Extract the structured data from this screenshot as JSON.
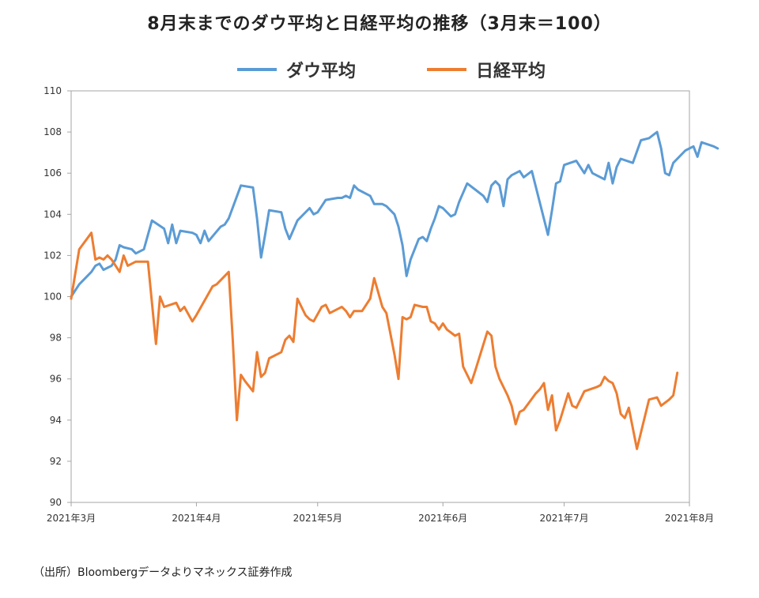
{
  "chart_data": {
    "type": "line",
    "title": "8月末までのダウ平均と日経平均の推移（3月末＝100）",
    "source": "（出所）Bloombergデータよりマネックス証券作成",
    "ylim": [
      90,
      110
    ],
    "yticks": [
      "90",
      "92",
      "94",
      "96",
      "98",
      "100",
      "102",
      "104",
      "106",
      "108",
      "110"
    ],
    "xticks": [
      "2021年3月",
      "2021年4月",
      "2021年5月",
      "2021年6月",
      "2021年7月",
      "2021年8月"
    ],
    "xlim": [
      0,
      153
    ],
    "xtick_positions": [
      0,
      31,
      61,
      92,
      122,
      153
    ],
    "legend_position": "top",
    "series": [
      {
        "name": "ダウ平均",
        "color": "#5B9BD5",
        "points": [
          [
            0,
            100
          ],
          [
            2,
            100.6
          ],
          [
            5,
            101.2
          ],
          [
            6,
            101.5
          ],
          [
            7,
            101.6
          ],
          [
            8,
            101.3
          ],
          [
            9,
            101.4
          ],
          [
            10,
            101.5
          ],
          [
            11,
            101.8
          ],
          [
            12,
            102.5
          ],
          [
            13,
            102.4
          ],
          [
            15,
            102.3
          ],
          [
            16,
            102.1
          ],
          [
            18,
            102.3
          ],
          [
            19,
            103.0
          ],
          [
            20,
            103.7
          ],
          [
            23,
            103.3
          ],
          [
            24,
            102.6
          ],
          [
            25,
            103.5
          ],
          [
            26,
            102.6
          ],
          [
            27,
            103.2
          ],
          [
            30,
            103.1
          ],
          [
            31,
            103.0
          ],
          [
            32,
            102.6
          ],
          [
            33,
            103.2
          ],
          [
            34,
            102.7
          ],
          [
            37,
            103.4
          ],
          [
            38,
            103.5
          ],
          [
            39,
            103.8
          ],
          [
            42,
            105.4
          ],
          [
            45,
            105.3
          ],
          [
            46,
            103.8
          ],
          [
            47,
            101.9
          ],
          [
            48,
            103.0
          ],
          [
            49,
            104.2
          ],
          [
            52,
            104.1
          ],
          [
            53,
            103.3
          ],
          [
            54,
            102.8
          ],
          [
            56,
            103.7
          ],
          [
            59,
            104.3
          ],
          [
            60,
            104.0
          ],
          [
            61,
            104.1
          ],
          [
            63,
            104.7
          ],
          [
            66,
            104.8
          ],
          [
            67,
            104.8
          ],
          [
            68,
            104.9
          ],
          [
            69,
            104.8
          ],
          [
            70,
            105.4
          ],
          [
            71,
            105.2
          ],
          [
            73,
            105.0
          ],
          [
            74,
            104.9
          ],
          [
            75,
            104.5
          ],
          [
            77,
            104.5
          ],
          [
            78,
            104.4
          ],
          [
            80,
            104.0
          ],
          [
            81,
            103.4
          ],
          [
            82,
            102.5
          ],
          [
            83,
            101.0
          ],
          [
            84,
            101.8
          ],
          [
            86,
            102.8
          ],
          [
            87,
            102.9
          ],
          [
            88,
            102.7
          ],
          [
            89,
            103.3
          ],
          [
            90,
            103.8
          ],
          [
            91,
            104.4
          ],
          [
            92,
            104.3
          ],
          [
            94,
            103.9
          ],
          [
            95,
            104.0
          ],
          [
            96,
            104.6
          ],
          [
            98,
            105.5
          ],
          [
            100,
            105.2
          ],
          [
            102,
            104.9
          ],
          [
            103,
            104.6
          ],
          [
            104,
            105.4
          ],
          [
            105,
            105.6
          ],
          [
            106,
            105.4
          ],
          [
            107,
            104.4
          ],
          [
            108,
            105.7
          ],
          [
            109,
            105.9
          ],
          [
            111,
            106.1
          ],
          [
            112,
            105.8
          ],
          [
            114,
            106.1
          ],
          [
            118,
            103.0
          ],
          [
            119,
            104.2
          ],
          [
            120,
            105.5
          ],
          [
            121,
            105.6
          ],
          [
            122,
            106.4
          ],
          [
            125,
            106.6
          ],
          [
            127,
            106.0
          ],
          [
            128,
            106.4
          ],
          [
            129,
            106.0
          ],
          [
            132,
            105.7
          ],
          [
            133,
            106.5
          ],
          [
            134,
            105.5
          ],
          [
            135,
            106.3
          ],
          [
            136,
            106.7
          ],
          [
            139,
            106.5
          ],
          [
            141,
            107.6
          ],
          [
            143,
            107.7
          ],
          [
            145,
            108.0
          ],
          [
            146,
            107.2
          ],
          [
            147,
            106.0
          ],
          [
            148,
            105.9
          ],
          [
            149,
            106.5
          ],
          [
            152,
            107.1
          ],
          [
            154,
            107.3
          ],
          [
            155,
            106.8
          ],
          [
            156,
            107.5
          ],
          [
            159,
            107.3
          ],
          [
            160,
            107.2
          ]
        ]
      },
      {
        "name": "日経平均",
        "color": "#ED7D31",
        "points": [
          [
            0,
            99.9
          ],
          [
            2,
            102.3
          ],
          [
            5,
            103.1
          ],
          [
            6,
            101.8
          ],
          [
            7,
            101.9
          ],
          [
            8,
            101.8
          ],
          [
            9,
            102.0
          ],
          [
            10,
            101.8
          ],
          [
            12,
            101.2
          ],
          [
            13,
            102.0
          ],
          [
            14,
            101.5
          ],
          [
            16,
            101.7
          ],
          [
            19,
            101.7
          ],
          [
            20,
            99.7
          ],
          [
            21,
            97.7
          ],
          [
            22,
            100.0
          ],
          [
            23,
            99.5
          ],
          [
            26,
            99.7
          ],
          [
            27,
            99.3
          ],
          [
            28,
            99.5
          ],
          [
            30,
            98.8
          ],
          [
            31,
            99.1
          ],
          [
            35,
            100.5
          ],
          [
            36,
            100.6
          ],
          [
            39,
            101.2
          ],
          [
            40,
            97.9
          ],
          [
            41,
            94.0
          ],
          [
            42,
            96.2
          ],
          [
            43,
            95.9
          ],
          [
            45,
            95.4
          ],
          [
            46,
            97.3
          ],
          [
            47,
            96.1
          ],
          [
            48,
            96.3
          ],
          [
            49,
            97.0
          ],
          [
            52,
            97.3
          ],
          [
            53,
            97.9
          ],
          [
            54,
            98.1
          ],
          [
            55,
            97.8
          ],
          [
            56,
            99.9
          ],
          [
            57,
            99.5
          ],
          [
            58,
            99.1
          ],
          [
            59,
            98.9
          ],
          [
            60,
            98.8
          ],
          [
            62,
            99.5
          ],
          [
            63,
            99.6
          ],
          [
            64,
            99.2
          ],
          [
            66,
            99.4
          ],
          [
            67,
            99.5
          ],
          [
            68,
            99.3
          ],
          [
            69,
            99.0
          ],
          [
            70,
            99.3
          ],
          [
            72,
            99.3
          ],
          [
            74,
            99.9
          ],
          [
            75,
            100.9
          ],
          [
            77,
            99.5
          ],
          [
            78,
            99.2
          ],
          [
            80,
            97.2
          ],
          [
            81,
            96.0
          ],
          [
            82,
            99.0
          ],
          [
            83,
            98.9
          ],
          [
            84,
            99.0
          ],
          [
            85,
            99.6
          ],
          [
            87,
            99.5
          ],
          [
            88,
            99.5
          ],
          [
            89,
            98.8
          ],
          [
            90,
            98.7
          ],
          [
            91,
            98.4
          ],
          [
            92,
            98.7
          ],
          [
            93,
            98.4
          ],
          [
            95,
            98.1
          ],
          [
            96,
            98.2
          ],
          [
            97,
            96.6
          ],
          [
            99,
            95.8
          ],
          [
            100,
            96.4
          ],
          [
            103,
            98.3
          ],
          [
            104,
            98.1
          ],
          [
            105,
            96.6
          ],
          [
            106,
            96.0
          ],
          [
            108,
            95.2
          ],
          [
            109,
            94.7
          ],
          [
            110,
            93.8
          ],
          [
            111,
            94.4
          ],
          [
            112,
            94.5
          ],
          [
            115,
            95.3
          ],
          [
            116,
            95.5
          ],
          [
            117,
            95.8
          ],
          [
            118,
            94.5
          ],
          [
            119,
            95.2
          ],
          [
            120,
            93.5
          ],
          [
            121,
            94.0
          ],
          [
            123,
            95.3
          ],
          [
            124,
            94.7
          ],
          [
            125,
            94.6
          ],
          [
            126,
            95.0
          ],
          [
            127,
            95.4
          ],
          [
            130,
            95.6
          ],
          [
            131,
            95.7
          ],
          [
            132,
            96.1
          ],
          [
            133,
            95.9
          ],
          [
            134,
            95.8
          ],
          [
            135,
            95.3
          ],
          [
            136,
            94.3
          ],
          [
            137,
            94.1
          ],
          [
            138,
            94.6
          ],
          [
            140,
            92.6
          ],
          [
            143,
            95.0
          ],
          [
            145,
            95.1
          ],
          [
            146,
            94.7
          ],
          [
            148,
            95.0
          ],
          [
            149,
            95.2
          ],
          [
            150,
            96.3
          ]
        ]
      }
    ]
  }
}
